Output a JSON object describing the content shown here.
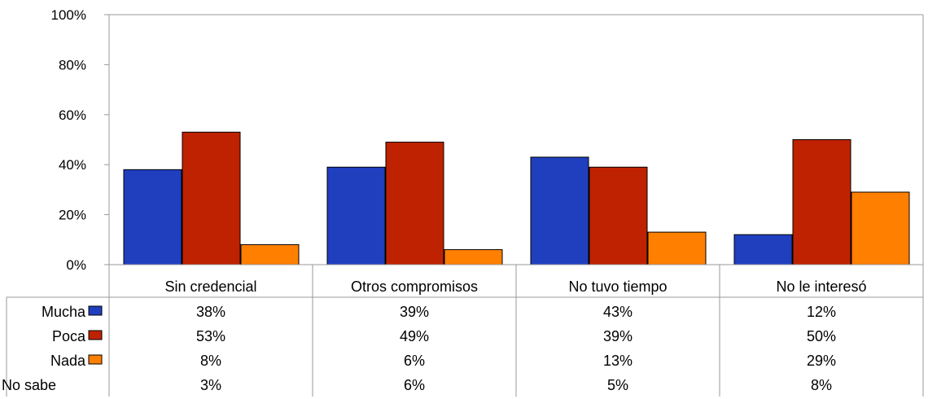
{
  "chart_data": {
    "type": "bar",
    "categories": [
      "Sin credencial",
      "Otros compromisos",
      "No tuvo tiempo",
      "No le interesó"
    ],
    "ylim": [
      0,
      100
    ],
    "yticks": [
      "0%",
      "20%",
      "40%",
      "60%",
      "80%",
      "100%"
    ],
    "series": [
      {
        "name": "Mucha",
        "values": [
          38,
          39,
          43,
          12
        ],
        "color": "#1f3fbf",
        "plotted": true
      },
      {
        "name": "Poca",
        "values": [
          53,
          49,
          39,
          50
        ],
        "color": "#bf2200",
        "plotted": true
      },
      {
        "name": "Nada",
        "values": [
          8,
          6,
          13,
          29
        ],
        "color": "#ff7f00",
        "plotted": true
      },
      {
        "name": "No sabe",
        "values": [
          3,
          6,
          5,
          8
        ],
        "color": "",
        "plotted": false
      }
    ],
    "table": {
      "rows": [
        [
          "38%",
          "39%",
          "43%",
          "12%"
        ],
        [
          "53%",
          "49%",
          "39%",
          "50%"
        ],
        [
          "8%",
          "6%",
          "13%",
          "29%"
        ],
        [
          "3%",
          "6%",
          "5%",
          "8%"
        ]
      ]
    },
    "grid": false,
    "legend": "data-table"
  }
}
